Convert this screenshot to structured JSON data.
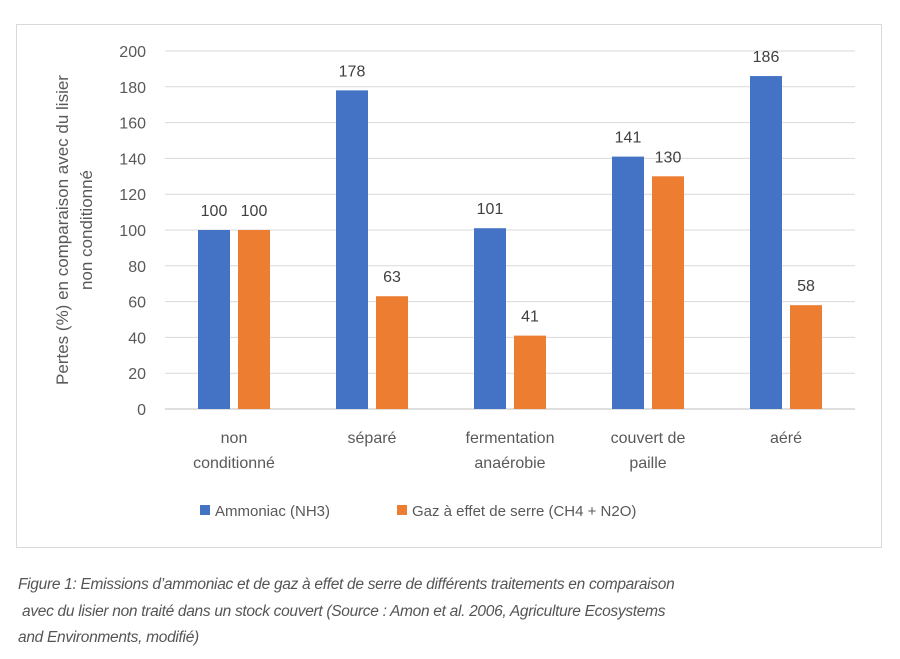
{
  "chart_data": {
    "type": "bar",
    "categories": [
      [
        "non",
        "conditionné"
      ],
      [
        "séparé"
      ],
      [
        "fermentation",
        "anaérobie"
      ],
      [
        "couvert de",
        "paille"
      ],
      [
        "aéré"
      ]
    ],
    "series": [
      {
        "name": "Ammoniac (NH3)",
        "color": "#4472c4",
        "values": [
          100,
          178,
          101,
          141,
          186
        ]
      },
      {
        "name": "Gaz à effet de serre (CH4 + N2O)",
        "color": "#ed7d31",
        "values": [
          100,
          63,
          41,
          130,
          58
        ]
      }
    ],
    "ylabel": [
      "Pertes (%) en comparaison avec du lisier",
      "non conditionné"
    ],
    "xlabel": "",
    "ylim": [
      0,
      200
    ],
    "yticks": [
      0,
      20,
      40,
      60,
      80,
      100,
      120,
      140,
      160,
      180,
      200
    ],
    "grid": true,
    "legend": "bottom",
    "data_labels": true
  },
  "caption": {
    "lines": [
      "Figure 1: Emissions d’ammoniac et de gaz à effet de serre de différents traitements en comparaison",
      " avec du lisier non traité dans un stock couvert (Source : Amon et al. 2006, Agriculture Ecosystems",
      "and Environments, modifié)"
    ]
  }
}
